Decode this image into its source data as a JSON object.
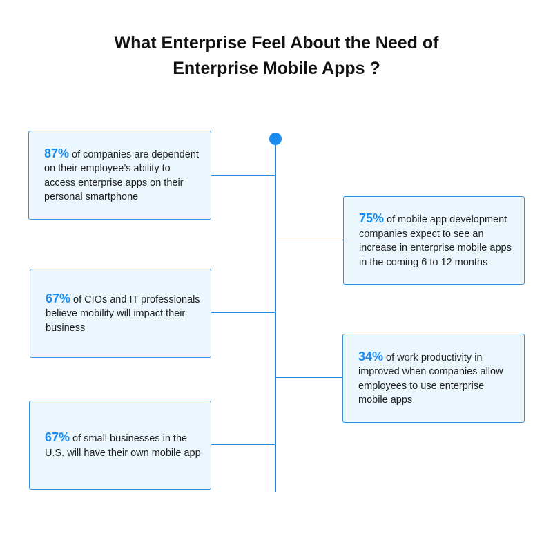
{
  "title": {
    "line1": "What Enterprise Feel About the Need of",
    "line2": "Enterprise Mobile Apps ?"
  },
  "colors": {
    "accent": "#1a8cf0",
    "card_bg": "#ebf6fd",
    "card_border": "#3b8fd6",
    "text": "#1f1f1f"
  },
  "stats": [
    {
      "percent": "87%",
      "text": " of companies are dependent on their employee’s ability to access enterprise apps on their personal smartphone"
    },
    {
      "percent": "75%",
      "text": " of mobile app development companies expect to see an increase in enterprise mobile apps in the coming 6 to 12 months"
    },
    {
      "percent": "67%",
      "text": " of CIOs and IT professionals believe mobility will impact their business"
    },
    {
      "percent": "34%",
      "text": " of work productivity in improved when companies allow employees to use enterprise mobile apps"
    },
    {
      "percent": "67%",
      "text": " of small businesses in the U.S. will have their own mobile app"
    }
  ]
}
